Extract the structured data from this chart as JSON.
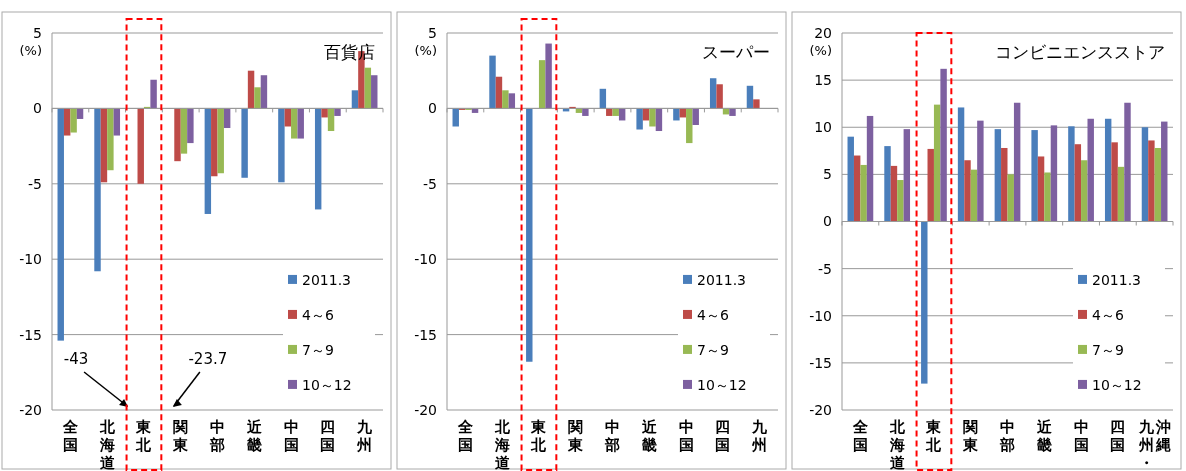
{
  "chart_data": [
    {
      "type": "bar",
      "title": "百貨店",
      "ylabel": "(%)",
      "categories": [
        "全国",
        "北海道",
        "東北",
        "関東",
        "中部",
        "近畿",
        "中国",
        "四国",
        "九州"
      ],
      "ylim": [
        -20,
        5
      ],
      "yticks": [
        -20,
        -15,
        -10,
        -5,
        0,
        5
      ],
      "grid": "y",
      "legend": "right",
      "series": [
        {
          "name": "2011.3",
          "color": "#4a7ebb",
          "values": [
            -15.4,
            -10.8,
            null,
            null,
            -7.0,
            -4.6,
            -4.9,
            -6.7,
            1.2
          ]
        },
        {
          "name": "4～6",
          "color": "#be4b48",
          "values": [
            -1.8,
            -4.9,
            -5.0,
            -3.5,
            -4.5,
            2.5,
            -1.2,
            -0.6,
            3.8
          ]
        },
        {
          "name": "7～9",
          "color": "#98b954",
          "values": [
            -1.6,
            -4.1,
            0.1,
            -3.0,
            -4.3,
            1.4,
            -2.0,
            -1.5,
            2.7
          ]
        },
        {
          "name": "10～12",
          "color": "#7d60a0",
          "values": [
            -0.7,
            -1.8,
            1.9,
            -2.3,
            -1.3,
            2.2,
            -2.0,
            -0.5,
            2.2
          ]
        }
      ],
      "annotations": [
        "-43",
        "-23.7"
      ]
    },
    {
      "type": "bar",
      "title": "スーパー",
      "ylabel": "(%)",
      "categories": [
        "全国",
        "北海道",
        "東北",
        "関東",
        "中部",
        "近畿",
        "中国",
        "四国",
        "九州"
      ],
      "ylim": [
        -20,
        5
      ],
      "yticks": [
        -20,
        -15,
        -10,
        -5,
        0,
        5
      ],
      "grid": "y",
      "legend": "right",
      "series": [
        {
          "name": "2011.3",
          "color": "#4a7ebb",
          "values": [
            -1.2,
            3.5,
            -16.8,
            -0.2,
            1.3,
            -1.4,
            -0.8,
            2.0,
            1.5
          ]
        },
        {
          "name": "4～6",
          "color": "#be4b48",
          "values": [
            -0.1,
            2.1,
            0.0,
            0.1,
            -0.5,
            -0.8,
            -0.6,
            1.6,
            0.6
          ]
        },
        {
          "name": "7～9",
          "color": "#98b954",
          "values": [
            -0.1,
            1.2,
            3.2,
            -0.3,
            -0.5,
            -1.2,
            -2.3,
            -0.4,
            0.0
          ]
        },
        {
          "name": "10～12",
          "color": "#7d60a0",
          "values": [
            -0.3,
            1.0,
            4.3,
            -0.5,
            -0.8,
            -1.5,
            -1.1,
            -0.5,
            0.0
          ]
        }
      ]
    },
    {
      "type": "bar",
      "title": "コンビニエンスストア",
      "ylabel": "(%)",
      "categories": [
        "全国",
        "北海道",
        "東北",
        "関東",
        "中部",
        "近畿",
        "中国",
        "四国",
        "九州・沖縄"
      ],
      "ylim": [
        -20,
        20
      ],
      "yticks": [
        -20,
        -15,
        -10,
        -5,
        0,
        5,
        10,
        15,
        20
      ],
      "grid": "y",
      "legend": "right",
      "series": [
        {
          "name": "2011.3",
          "color": "#4a7ebb",
          "values": [
            9.0,
            8.0,
            -17.2,
            12.1,
            9.8,
            9.7,
            10.1,
            10.9,
            10.0
          ]
        },
        {
          "name": "4～6",
          "color": "#be4b48",
          "values": [
            7.0,
            5.9,
            7.7,
            6.5,
            7.8,
            6.9,
            8.2,
            8.4,
            8.6
          ]
        },
        {
          "name": "7～9",
          "color": "#98b954",
          "values": [
            6.0,
            4.4,
            12.4,
            5.5,
            5.0,
            5.2,
            6.5,
            5.8,
            7.8
          ]
        },
        {
          "name": "10～12",
          "color": "#7d60a0",
          "values": [
            11.2,
            9.8,
            16.2,
            10.7,
            12.6,
            10.2,
            10.9,
            12.6,
            10.6
          ]
        }
      ]
    }
  ]
}
